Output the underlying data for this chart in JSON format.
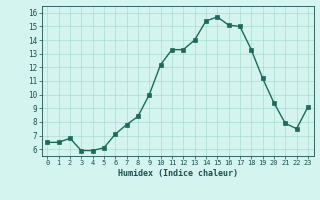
{
  "x": [
    0,
    1,
    2,
    3,
    4,
    5,
    6,
    7,
    8,
    9,
    10,
    11,
    12,
    13,
    14,
    15,
    16,
    17,
    18,
    19,
    20,
    21,
    22,
    23
  ],
  "y": [
    6.5,
    6.5,
    6.8,
    5.9,
    5.9,
    6.1,
    7.1,
    7.8,
    8.4,
    10.0,
    12.2,
    13.3,
    13.3,
    14.0,
    15.4,
    15.7,
    15.1,
    15.0,
    13.3,
    11.2,
    9.4,
    7.9,
    7.5,
    9.1
  ],
  "xlim": [
    -0.5,
    23.5
  ],
  "ylim": [
    5.5,
    16.5
  ],
  "yticks": [
    6,
    7,
    8,
    9,
    10,
    11,
    12,
    13,
    14,
    15,
    16
  ],
  "xticks": [
    0,
    1,
    2,
    3,
    4,
    5,
    6,
    7,
    8,
    9,
    10,
    11,
    12,
    13,
    14,
    15,
    16,
    17,
    18,
    19,
    20,
    21,
    22,
    23
  ],
  "xlabel": "Humidex (Indice chaleur)",
  "line_color": "#1a6b5a",
  "marker_color": "#1a6b5a",
  "bg_color": "#d4f5ef",
  "grid_color": "#aaddcc",
  "tick_color": "#1a5050"
}
